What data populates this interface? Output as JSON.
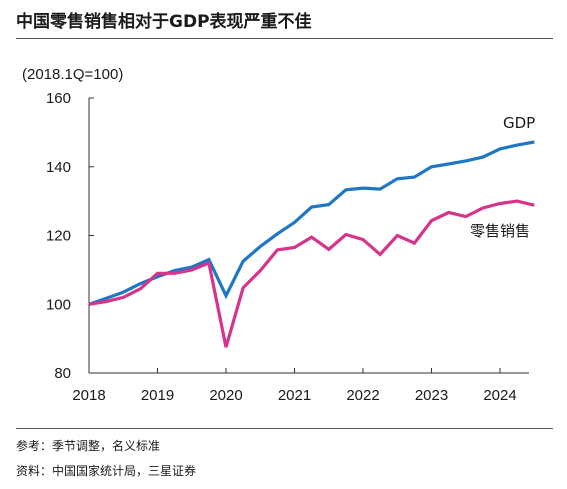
{
  "header": {
    "title": "中国零售销售相对于GDP表现严重不佳"
  },
  "footer": {
    "note": "参考：季节调整，名义标准",
    "source": "资料：中国国家统计局，三星证券"
  },
  "chart_data": {
    "type": "line",
    "unit_label": "(2018.1Q=100)",
    "xlabel": "",
    "ylabel": "",
    "x_ticks": [
      "2018",
      "2019",
      "2020",
      "2021",
      "2022",
      "2023",
      "2024"
    ],
    "y_ticks": [
      "80",
      "100",
      "120",
      "140",
      "160"
    ],
    "ylim": [
      80,
      160
    ],
    "xlim": [
      2018.0,
      2024.75
    ],
    "grid": false,
    "x": [
      2018.0,
      2018.25,
      2018.5,
      2018.75,
      2019.0,
      2019.25,
      2019.5,
      2019.75,
      2020.0,
      2020.25,
      2020.5,
      2020.75,
      2021.0,
      2021.25,
      2021.5,
      2021.75,
      2022.0,
      2022.25,
      2022.5,
      2022.75,
      2023.0,
      2023.25,
      2023.5,
      2023.75,
      2024.0,
      2024.25,
      2024.5
    ],
    "series": [
      {
        "name": "GDP",
        "color": "#1f77c4",
        "values": [
          100,
          101.7,
          103.5,
          106,
          108,
          109.8,
          110.8,
          113,
          102.5,
          112.5,
          116.8,
          120.5,
          123.8,
          128.3,
          129,
          133.3,
          133.8,
          133.5,
          136.5,
          137,
          140,
          140.8,
          141.7,
          142.8,
          145.2,
          146.3,
          147.2
        ]
      },
      {
        "name": "零售销售",
        "color": "#d6338a",
        "values": [
          100,
          100.8,
          102,
          104.5,
          109,
          109,
          110,
          112,
          87.5,
          104.8,
          109.8,
          115.8,
          116.5,
          119.5,
          116,
          120.3,
          118.8,
          114.5,
          120,
          117.8,
          124.3,
          126.7,
          125.5,
          128,
          129.3,
          130,
          128.8
        ]
      }
    ]
  }
}
